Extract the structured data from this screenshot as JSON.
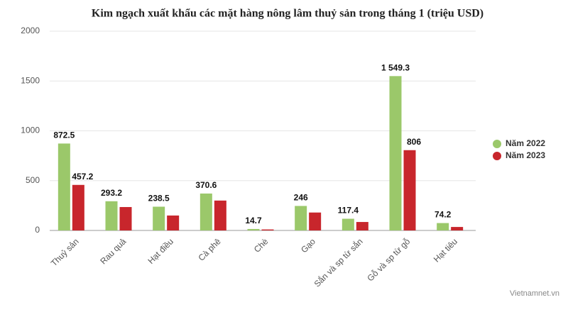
{
  "chart_data": {
    "type": "bar",
    "title": "Kim ngạch xuất khẩu các mặt hàng nông lâm thuỷ sản trong tháng 1 (triệu USD)",
    "categories": [
      "Thuỷ sản",
      "Rau quả",
      "Hạt điều",
      "Cà phê",
      "Chè",
      "Gạo",
      "Sắn và sp từ sắn",
      "Gỗ và sp từ gỗ",
      "Hạt tiêu"
    ],
    "series": [
      {
        "name": "Năm 2022",
        "color": "#9bc86a",
        "values": [
          872.5,
          293.2,
          238.5,
          370.6,
          14.7,
          246,
          117.4,
          1549.3,
          74.2
        ],
        "value_labels": [
          "872.5",
          "293.2",
          "238.5",
          "370.6",
          "14.7",
          "246",
          "117.4",
          "1 549.3",
          "74.2"
        ]
      },
      {
        "name": "Năm 2023",
        "color": "#c8262c",
        "values": [
          457.2,
          235,
          150,
          300,
          10,
          180,
          85,
          806,
          35
        ],
        "value_labels": [
          "457.2",
          null,
          null,
          null,
          null,
          null,
          null,
          "806",
          null
        ]
      }
    ],
    "ylim": [
      0,
      2000
    ],
    "yticks": [
      0,
      500,
      1000,
      1500,
      2000
    ],
    "grid": true,
    "legend": "right",
    "source": "Vietnamnet.vn"
  }
}
